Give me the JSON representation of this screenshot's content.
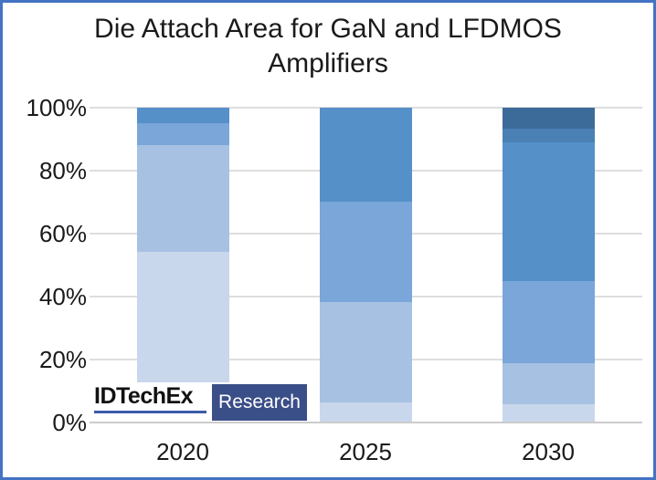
{
  "frame": {
    "border_color": "#4472C4"
  },
  "title": {
    "line1": "Die Attach Area for GaN and LFDMOS",
    "line2": "Amplifiers"
  },
  "y_axis": {
    "labels": [
      "100%",
      "80%",
      "60%",
      "40%",
      "20%",
      "0%"
    ]
  },
  "x_axis": {
    "labels": [
      "2020",
      "2025",
      "2030"
    ]
  },
  "logo": {
    "brand": "IDTechEx",
    "suffix": "Research",
    "brand_underline_color": "#3A5BA8",
    "suffix_bg_color": "#3A4E88"
  },
  "chart_data": {
    "type": "bar",
    "stacked": true,
    "percent_stacked": true,
    "title": "Die Attach Area for GaN and LFDMOS Amplifiers",
    "categories": [
      "2020",
      "2025",
      "2030"
    ],
    "series": [
      {
        "name": "segment-1-lightest-blue",
        "color": "#C9D7EC",
        "values": [
          54.0,
          6.5,
          5.7
        ]
      },
      {
        "name": "segment-2-light-blue",
        "color": "#A7C1E3",
        "values": [
          34.0,
          31.8,
          13.0
        ]
      },
      {
        "name": "segment-3-mid-light-blue",
        "color": "#7AA6D9",
        "values": [
          7.0,
          31.7,
          26.1
        ]
      },
      {
        "name": "segment-4-medium-blue",
        "color": "#5590C9",
        "values": [
          5.0,
          30.0,
          44.0
        ]
      },
      {
        "name": "segment-5-dark-blue",
        "color": "#4A80B4",
        "values": [
          0.0,
          0.0,
          4.5
        ]
      },
      {
        "name": "segment-6-darkest-blue",
        "color": "#3D6B99",
        "values": [
          0.0,
          0.0,
          6.7
        ]
      }
    ],
    "ylim": [
      0,
      100
    ],
    "yticks": [
      0,
      20,
      40,
      60,
      80,
      100
    ],
    "ytick_format": "percent",
    "grid": true,
    "legend": "none",
    "gridline_color": "#DEDEDE",
    "axis_line_color": "#CCCCCC"
  }
}
